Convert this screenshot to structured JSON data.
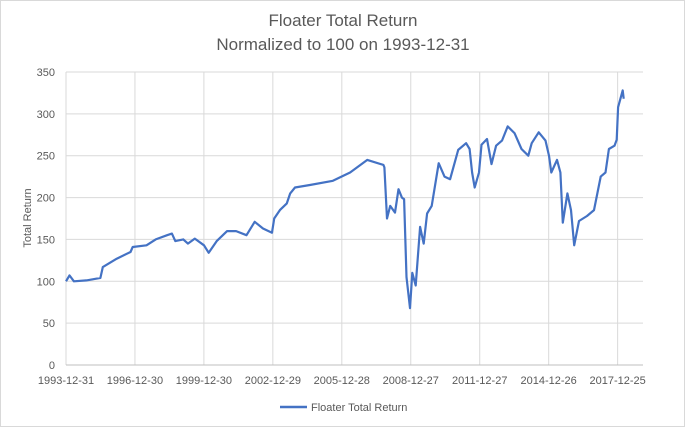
{
  "chart_data": {
    "type": "line",
    "title": "Floater Total Return",
    "subtitle": "Normalized to 100 on 1993-12-31",
    "xlabel": "",
    "ylabel": "Total Return",
    "ylim": [
      0,
      350
    ],
    "yticks": [
      0,
      50,
      100,
      150,
      200,
      250,
      300,
      350
    ],
    "xlim": [
      "1993-12-31",
      "2019-02-01"
    ],
    "xticks": [
      "1993-12-31",
      "1996-12-30",
      "1999-12-30",
      "2002-12-29",
      "2005-12-28",
      "2008-12-27",
      "2011-12-27",
      "2014-12-26",
      "2017-12-25"
    ],
    "grid": true,
    "legend_position": "bottom",
    "colors": {
      "series": "#4472c4",
      "grid": "#d9d9d9",
      "text": "#595959"
    },
    "series": [
      {
        "name": "Floater Total Return",
        "points": [
          [
            "1993-12-31",
            100
          ],
          [
            "1994-02-25",
            107
          ],
          [
            "1994-05-05",
            100
          ],
          [
            "1994-11-20",
            101
          ],
          [
            "1995-07-01",
            104
          ],
          [
            "1995-08-08",
            117
          ],
          [
            "1996-03-15",
            127
          ],
          [
            "1996-10-20",
            135
          ],
          [
            "1996-11-25",
            141
          ],
          [
            "1997-07-01",
            143
          ],
          [
            "1997-11-25",
            150
          ],
          [
            "1998-05-25",
            155
          ],
          [
            "1998-08-08",
            157
          ],
          [
            "1998-10-01",
            148
          ],
          [
            "1999-02-05",
            150
          ],
          [
            "1999-04-20",
            145
          ],
          [
            "1999-08-08",
            151
          ],
          [
            "2000-01-01",
            143
          ],
          [
            "2000-03-15",
            134
          ],
          [
            "2000-07-20",
            148
          ],
          [
            "2001-01-01",
            160
          ],
          [
            "2001-05-25",
            160
          ],
          [
            "2001-11-05",
            155
          ],
          [
            "2002-03-15",
            171
          ],
          [
            "2002-07-25",
            163
          ],
          [
            "2002-12-15",
            158
          ],
          [
            "2003-01-20",
            175
          ],
          [
            "2003-04-20",
            185
          ],
          [
            "2003-08-08",
            193
          ],
          [
            "2003-10-01",
            205
          ],
          [
            "2003-12-15",
            212
          ],
          [
            "2004-08-08",
            215
          ],
          [
            "2005-08-08",
            220
          ],
          [
            "2006-01-20",
            226
          ],
          [
            "2006-05-08",
            230
          ],
          [
            "2007-02-05",
            245
          ],
          [
            "2007-10-20",
            239
          ],
          [
            "2007-11-05",
            236
          ],
          [
            "2007-12-15",
            175
          ],
          [
            "2008-02-05",
            190
          ],
          [
            "2008-04-20",
            182
          ],
          [
            "2008-06-15",
            210
          ],
          [
            "2008-08-08",
            200
          ],
          [
            "2008-09-12",
            198
          ],
          [
            "2008-10-20",
            105
          ],
          [
            "2008-12-15",
            68
          ],
          [
            "2009-01-20",
            110
          ],
          [
            "2009-03-15",
            95
          ],
          [
            "2009-05-25",
            165
          ],
          [
            "2009-07-20",
            145
          ],
          [
            "2009-09-12",
            181
          ],
          [
            "2009-11-25",
            190
          ],
          [
            "2010-03-15",
            241
          ],
          [
            "2010-06-15",
            225
          ],
          [
            "2010-09-12",
            222
          ],
          [
            "2011-01-20",
            257
          ],
          [
            "2011-05-25",
            265
          ],
          [
            "2011-07-20",
            258
          ],
          [
            "2011-08-28",
            230
          ],
          [
            "2011-10-08",
            212
          ],
          [
            "2011-12-15",
            230
          ],
          [
            "2012-01-25",
            263
          ],
          [
            "2012-04-20",
            270
          ],
          [
            "2012-07-01",
            240
          ],
          [
            "2012-09-12",
            262
          ],
          [
            "2012-12-15",
            268
          ],
          [
            "2013-03-15",
            285
          ],
          [
            "2013-07-01",
            277
          ],
          [
            "2013-10-20",
            258
          ],
          [
            "2014-02-05",
            250
          ],
          [
            "2014-04-01",
            265
          ],
          [
            "2014-07-20",
            278
          ],
          [
            "2014-11-05",
            268
          ],
          [
            "2015-01-01",
            250
          ],
          [
            "2015-02-05",
            230
          ],
          [
            "2015-05-08",
            245
          ],
          [
            "2015-07-01",
            230
          ],
          [
            "2015-08-08",
            170
          ],
          [
            "2015-10-20",
            205
          ],
          [
            "2015-12-15",
            185
          ],
          [
            "2016-02-05",
            143
          ],
          [
            "2016-04-20",
            172
          ],
          [
            "2016-08-25",
            178
          ],
          [
            "2016-12-15",
            185
          ],
          [
            "2017-04-01",
            225
          ],
          [
            "2017-06-15",
            230
          ],
          [
            "2017-08-08",
            258
          ],
          [
            "2017-11-05",
            262
          ],
          [
            "2017-12-10",
            269
          ],
          [
            "2018-01-01",
            308
          ],
          [
            "2018-03-15",
            328
          ],
          [
            "2018-04-01",
            318
          ]
        ]
      }
    ]
  }
}
